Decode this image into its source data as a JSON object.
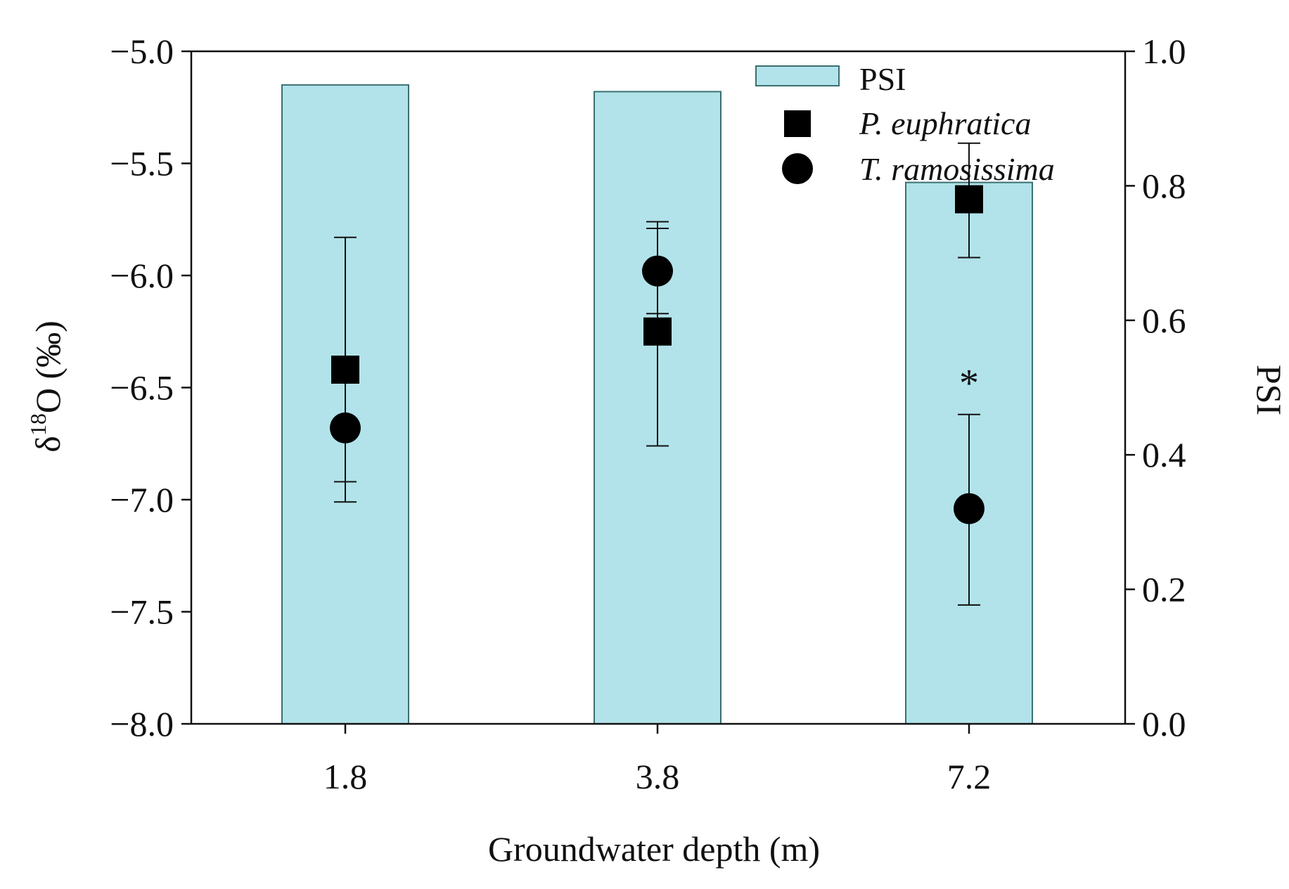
{
  "chart_data": {
    "type": "bar",
    "title": "",
    "xlabel": "Groundwater depth (m)",
    "ylabel_left": {
      "prefix": "δ",
      "sup": "18",
      "suffix": "O (‰)"
    },
    "ylabel_right": "PSI",
    "categories": [
      "1.8",
      "3.8",
      "7.2"
    ],
    "left_axis": {
      "ylim": [
        -8.0,
        -5.0
      ],
      "ticks": [
        -8.0,
        -7.5,
        -7.0,
        -6.5,
        -6.0,
        -5.5,
        -5.0
      ],
      "tick_labels": [
        "−8.0",
        "−7.5",
        "−7.0",
        "−6.5",
        "−6.0",
        "−5.5",
        "−5.0"
      ]
    },
    "right_axis": {
      "ylim": [
        0.0,
        1.0
      ],
      "ticks": [
        0.0,
        0.2,
        0.4,
        0.6,
        0.8,
        1.0
      ],
      "tick_labels": [
        "0.0",
        "0.2",
        "0.4",
        "0.6",
        "0.8",
        "1.0"
      ]
    },
    "grid": false,
    "legend_position": "top-right",
    "series": [
      {
        "name": "PSI",
        "kind": "bar",
        "axis": "right",
        "color": "#b2e3ea",
        "edge": "#3a6f70",
        "values": [
          0.95,
          0.94,
          0.805
        ]
      },
      {
        "name": "P. euphratica",
        "kind": "marker",
        "marker": "square",
        "axis": "left",
        "italic": true,
        "color": "#000000",
        "values": [
          -6.42,
          -6.25,
          -5.66
        ],
        "err_low": [
          -7.01,
          -6.76,
          -5.92
        ],
        "err_high": [
          -5.83,
          -5.76,
          -5.41
        ]
      },
      {
        "name": "T.  ramosissima",
        "kind": "marker",
        "marker": "circle",
        "axis": "left",
        "italic": true,
        "color": "#000000",
        "values": [
          -6.68,
          -5.98,
          -7.04
        ],
        "err_low": [
          -6.92,
          -6.17,
          -7.47
        ],
        "err_high": [
          -6.42,
          -5.79,
          -6.62
        ]
      }
    ],
    "annotations": [
      {
        "text": "*",
        "category_index": 2,
        "y": -6.45,
        "axis": "left"
      }
    ]
  }
}
